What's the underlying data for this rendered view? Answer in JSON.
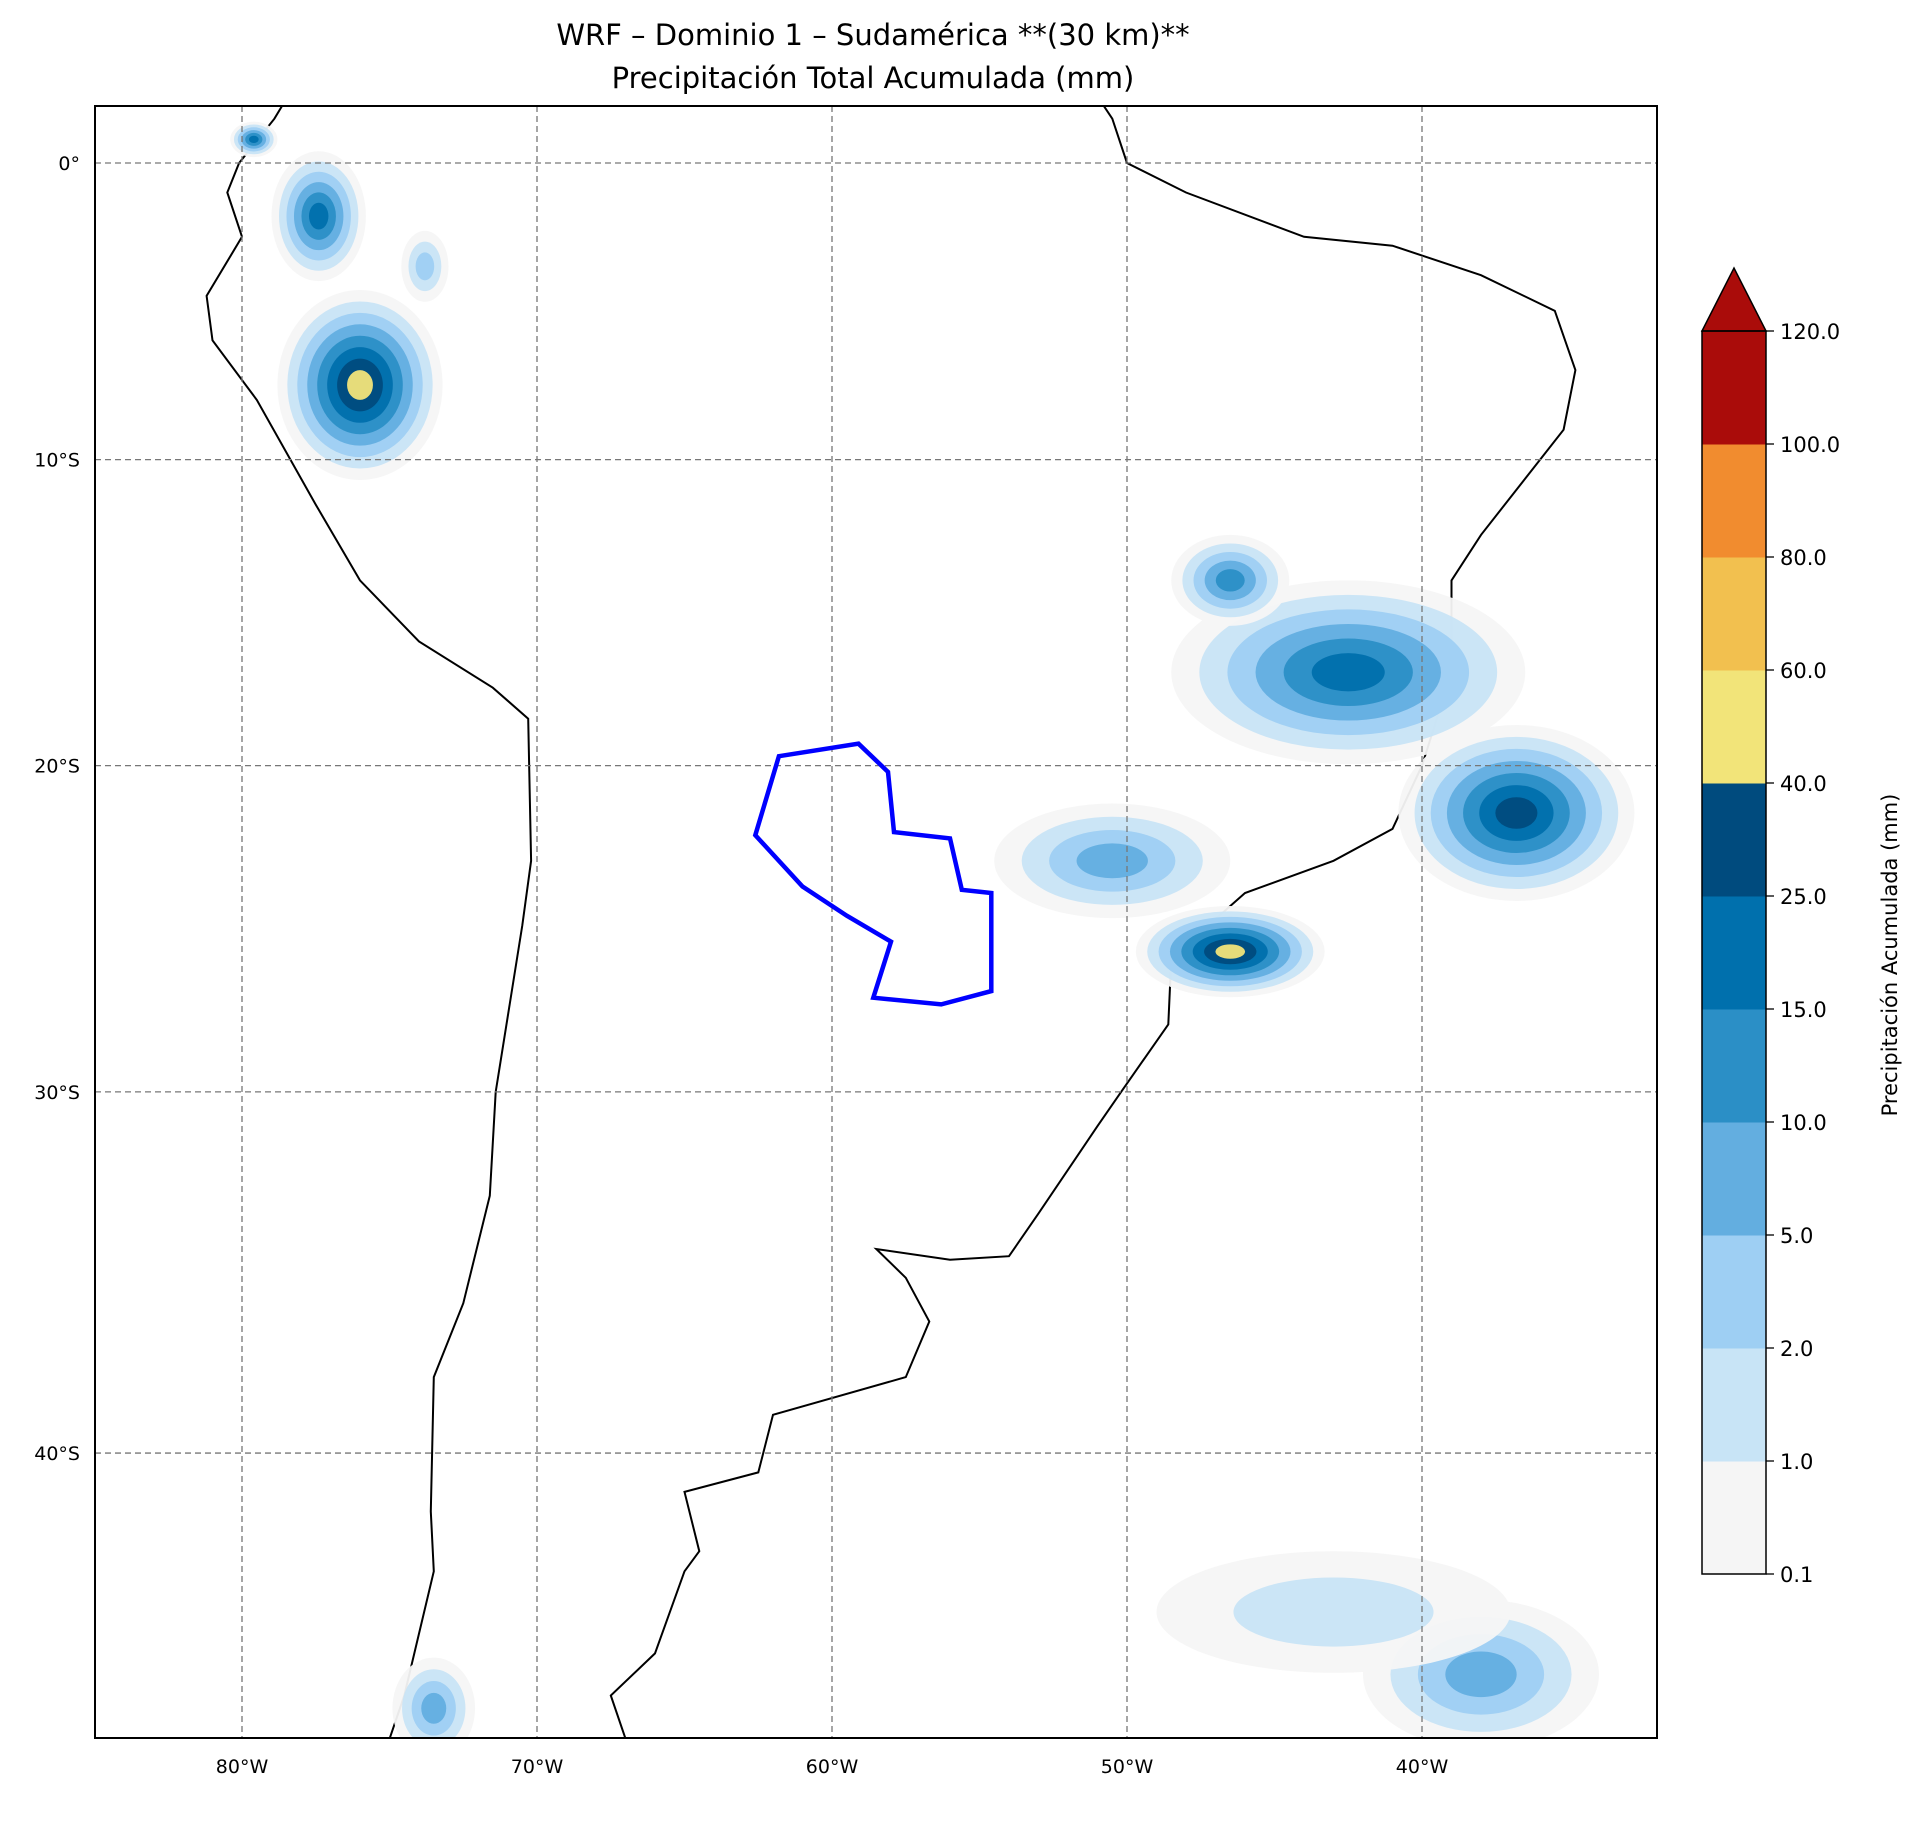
{
  "title_line1": "WRF – Dominio 1 – Sudamérica **(30 km)**",
  "title_line2": "Precipitación Total Acumulada (mm)",
  "chart_data": {
    "type": "heatmap",
    "projection": "mercator",
    "extent": {
      "lon": [
        -85,
        -32
      ],
      "lat": [
        -47,
        2
      ]
    },
    "lon_ticks": [
      {
        "value": -80,
        "label": "80°W"
      },
      {
        "value": -70,
        "label": "70°W"
      },
      {
        "value": -60,
        "label": "60°W"
      },
      {
        "value": -50,
        "label": "50°W"
      },
      {
        "value": -40,
        "label": "40°W"
      }
    ],
    "lat_ticks": [
      {
        "value": 0,
        "label": "0°"
      },
      {
        "value": -10,
        "label": "10°S"
      },
      {
        "value": -20,
        "label": "20°S"
      },
      {
        "value": -30,
        "label": "30°S"
      },
      {
        "value": -40,
        "label": "40°S"
      }
    ],
    "grid": true,
    "colorbar": {
      "label": "Precipitación Acumulada (mm)",
      "levels": [
        "0.1",
        "1.0",
        "2.0",
        "5.0",
        "10.0",
        "15.0",
        "25.0",
        "40.0",
        "60.0",
        "80.0",
        "100.0",
        "120.0"
      ],
      "colors": [
        "#f5f5f5",
        "#c8e4f6",
        "#9ecff3",
        "#63aee0",
        "#2b8fc6",
        "#0070ad",
        "#004b7e",
        "#f2e479",
        "#f2c04f",
        "#f18c2f",
        "#aa0c0a"
      ],
      "extend": "max"
    },
    "precip_cells": [
      {
        "lon": -76,
        "lat": -7.5,
        "rlon": 2.8,
        "rlat": 3.2,
        "level": 7
      },
      {
        "lon": -77.4,
        "lat": -1.8,
        "rlon": 1.6,
        "rlat": 2.2,
        "level": 5
      },
      {
        "lon": -79.6,
        "lat": 0.8,
        "rlon": 0.8,
        "rlat": 0.6,
        "level": 5
      },
      {
        "lon": -73.8,
        "lat": -3.5,
        "rlon": 0.8,
        "rlat": 1.2,
        "level": 2
      },
      {
        "lon": -42.5,
        "lat": -17,
        "rlon": 6,
        "rlat": 3,
        "level": 5
      },
      {
        "lon": -46.5,
        "lat": -14,
        "rlon": 2,
        "rlat": 1.5,
        "level": 4
      },
      {
        "lon": -36.8,
        "lat": -21.5,
        "rlon": 4,
        "rlat": 2.8,
        "level": 6
      },
      {
        "lon": -46.5,
        "lat": -25.8,
        "rlon": 3.2,
        "rlat": 1.4,
        "level": 7
      },
      {
        "lon": -50.5,
        "lat": -23,
        "rlon": 4,
        "rlat": 1.8,
        "level": 3
      },
      {
        "lon": -38,
        "lat": -45.5,
        "rlon": 4,
        "rlat": 1.8,
        "level": 3
      },
      {
        "lon": -73.5,
        "lat": -46.3,
        "rlon": 1.4,
        "rlat": 1.2,
        "level": 3
      },
      {
        "lon": -43,
        "lat": -44,
        "rlon": 6,
        "rlat": 1.5,
        "level": 1
      }
    ],
    "highlighted_region": "Paraguay"
  }
}
